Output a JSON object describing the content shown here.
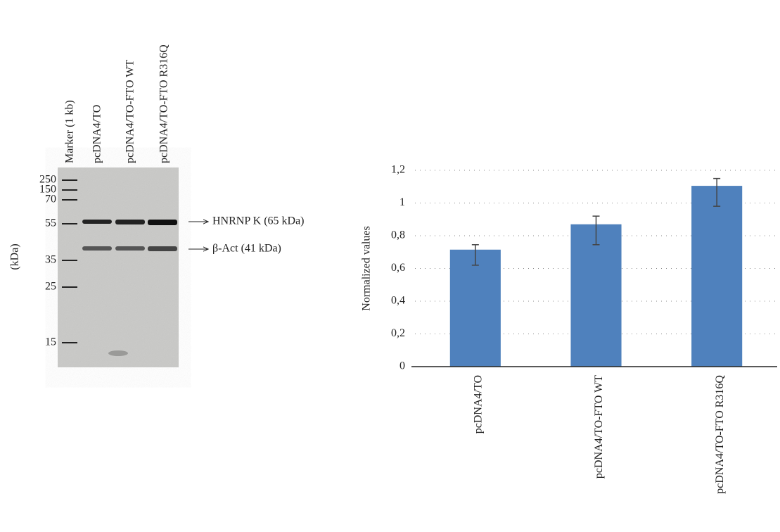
{
  "blot": {
    "lanes": [
      "Marker (1 kb)",
      "pcDNA4/TO",
      "pcDNA4/TO-FTO WT",
      "pcDNA4/TO-FTO R316Q"
    ],
    "marker_sizes": [
      "250",
      "150",
      "70",
      "55",
      "35",
      "25",
      "15"
    ],
    "unit": "(kDa)",
    "bands": [
      "HNRNP K (65 kDa)",
      "β-Act (41 kDa)"
    ]
  },
  "chart_data": {
    "type": "bar",
    "ylabel": "Normalized values",
    "categories": [
      "pcDNA4/TO",
      "pcDNA4/TO-FTO WT",
      "pcDNA4/TO-FTO R316Q"
    ],
    "values": [
      0.715,
      0.87,
      1.105
    ],
    "error_low": [
      0.62,
      0.745,
      0.98
    ],
    "error_high": [
      0.745,
      0.92,
      1.15
    ],
    "color": "#4f81bd",
    "ylim": [
      0,
      1.2
    ],
    "yticks": [
      0,
      {
        "value": 0.2,
        "label": "0,2"
      },
      {
        "value": 0.4,
        "label": "0,4"
      },
      {
        "value": 0.6,
        "label": "0,6"
      },
      {
        "value": 0.8,
        "label": "0,8"
      },
      1,
      {
        "value": 1.2,
        "label": "1,2"
      }
    ],
    "grid": true
  }
}
